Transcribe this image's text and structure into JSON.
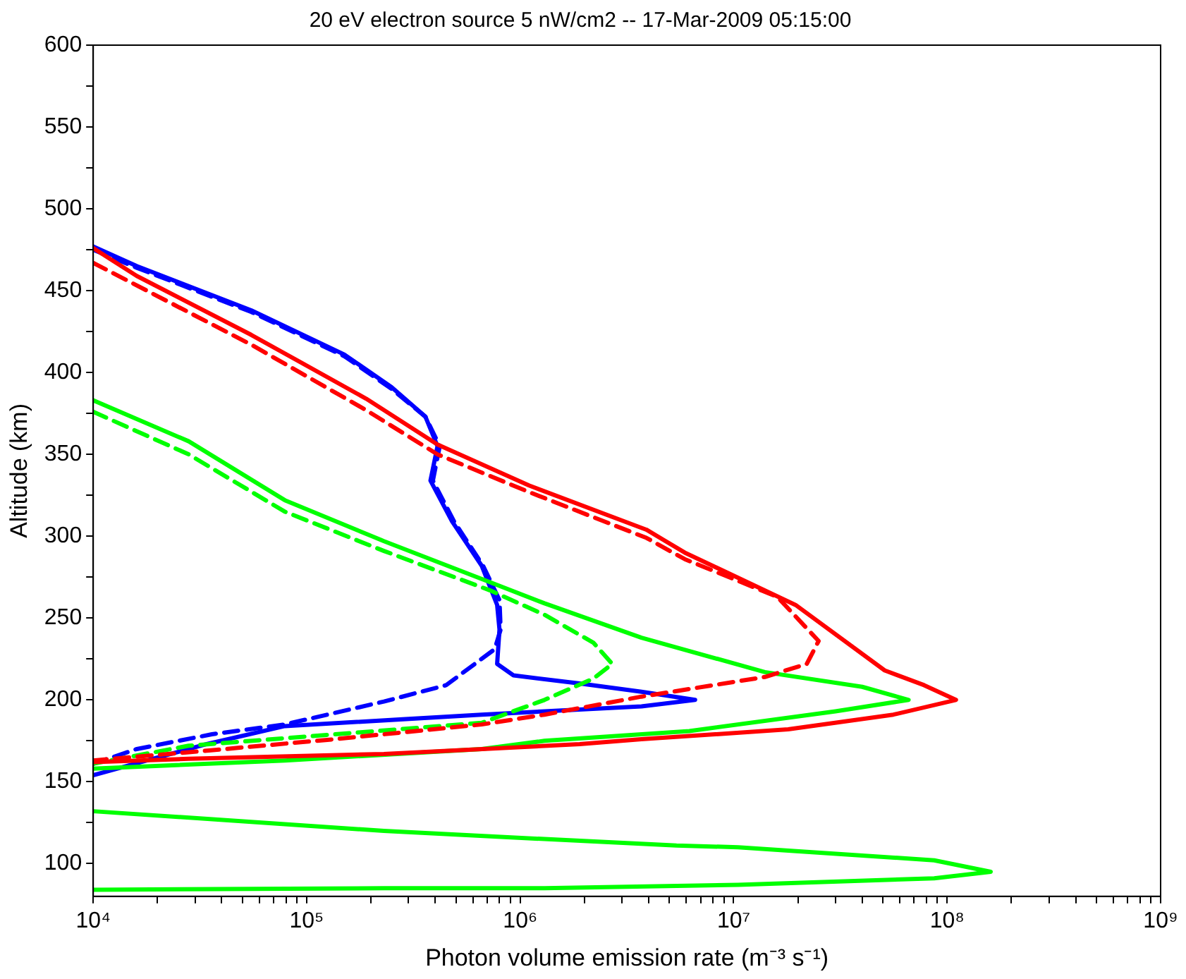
{
  "chart_data": {
    "type": "line",
    "title": "20 eV electron source 5 nW/cm2 -- 17-Mar-2009 05:15:00",
    "xlabel": "Photon volume emission rate (m⁻³ s⁻¹)",
    "ylabel": "Altitude (km)",
    "log": "x",
    "grid": false,
    "legend": false,
    "marker": "none",
    "xlim": [
      10000,
      1000000000
    ],
    "ylim": [
      80,
      600
    ],
    "xticks": [
      {
        "value": 10000,
        "label": "10⁴"
      },
      {
        "value": 20000,
        "label": null
      },
      {
        "value": 30000,
        "label": null
      },
      {
        "value": 40000,
        "label": null
      },
      {
        "value": 50000,
        "label": null
      },
      {
        "value": 60000,
        "label": null
      },
      {
        "value": 70000,
        "label": null
      },
      {
        "value": 80000,
        "label": null
      },
      {
        "value": 90000,
        "label": null
      },
      {
        "value": 100000,
        "label": "10⁵"
      },
      {
        "value": 200000,
        "label": null
      },
      {
        "value": 300000,
        "label": null
      },
      {
        "value": 400000,
        "label": null
      },
      {
        "value": 500000,
        "label": null
      },
      {
        "value": 600000,
        "label": null
      },
      {
        "value": 700000,
        "label": null
      },
      {
        "value": 800000,
        "label": null
      },
      {
        "value": 900000,
        "label": null
      },
      {
        "value": 1000000,
        "label": "10⁶"
      },
      {
        "value": 2000000,
        "label": null
      },
      {
        "value": 3000000,
        "label": null
      },
      {
        "value": 4000000,
        "label": null
      },
      {
        "value": 5000000,
        "label": null
      },
      {
        "value": 6000000,
        "label": null
      },
      {
        "value": 7000000,
        "label": null
      },
      {
        "value": 8000000,
        "label": null
      },
      {
        "value": 9000000,
        "label": null
      },
      {
        "value": 10000000,
        "label": "10⁷"
      },
      {
        "value": 20000000,
        "label": null
      },
      {
        "value": 30000000,
        "label": null
      },
      {
        "value": 40000000,
        "label": null
      },
      {
        "value": 50000000,
        "label": null
      },
      {
        "value": 60000000,
        "label": null
      },
      {
        "value": 70000000,
        "label": null
      },
      {
        "value": 80000000,
        "label": null
      },
      {
        "value": 90000000,
        "label": null
      },
      {
        "value": 100000000,
        "label": "10⁸"
      },
      {
        "value": 200000000,
        "label": null
      },
      {
        "value": 300000000,
        "label": null
      },
      {
        "value": 400000000,
        "label": null
      },
      {
        "value": 500000000,
        "label": null
      },
      {
        "value": 600000000,
        "label": null
      },
      {
        "value": 700000000,
        "label": null
      },
      {
        "value": 800000000,
        "label": null
      },
      {
        "value": 900000000,
        "label": null
      },
      {
        "value": 1000000000,
        "label": "10⁹"
      }
    ],
    "yticks": [
      100,
      {
        "value": 125,
        "label": null
      },
      150,
      {
        "value": 175,
        "label": null
      },
      200,
      {
        "value": 225,
        "label": null
      },
      250,
      {
        "value": 275,
        "label": null
      },
      300,
      {
        "value": 325,
        "label": null
      },
      350,
      {
        "value": 375,
        "label": null
      },
      400,
      {
        "value": 425,
        "label": null
      },
      450,
      {
        "value": 475,
        "label": null
      },
      500,
      {
        "value": 525,
        "label": null
      },
      550,
      {
        "value": 575,
        "label": null
      },
      600
    ],
    "series": [
      {
        "color": "#ff0000",
        "line_style": "solid",
        "x": [
          10000,
          16000,
          55000,
          190000,
          410000,
          1100000,
          3900000,
          5900000,
          19500000,
          51000000,
          78000000,
          110000000,
          56000000,
          18000000,
          3700000,
          1900000,
          230000,
          28000,
          10000
        ],
        "values": [
          476,
          459,
          423,
          384,
          356,
          331,
          304,
          290,
          258,
          218,
          209,
          200,
          191,
          182,
          176,
          173,
          167,
          164,
          162
        ]
      },
      {
        "color": "#ff0000",
        "line_style": "dashed",
        "x": [
          10000,
          55000,
          190000,
          410000,
          1100000,
          3900000,
          5900000,
          16000000,
          25000000,
          22000000,
          14000000,
          3700000,
          1300000,
          660000,
          135000,
          28000,
          10000
        ],
        "values": [
          467,
          417,
          377,
          350,
          327,
          299,
          286,
          263,
          236,
          222,
          214,
          202,
          191,
          185,
          176,
          168,
          163
        ]
      },
      {
        "color": "#00ff00",
        "line_style": "solid",
        "x": [
          10000,
          28000,
          79000,
          230000,
          720000,
          1300000,
          3700000,
          14000000,
          40000000,
          66000000,
          30000000,
          6200000,
          1300000,
          660000,
          79000,
          10000,
          null,
          10000,
          230000,
          1300000,
          5400000,
          10500000,
          87000000,
          160000000,
          87000000,
          10500000,
          1300000,
          230000,
          10000
        ],
        "values": [
          383,
          358,
          322,
          297,
          272,
          259,
          238,
          217,
          208,
          200,
          193,
          181,
          175,
          170,
          163,
          158,
          null,
          132,
          120,
          115,
          111,
          110,
          102,
          95,
          91,
          87,
          85,
          85,
          84
        ]
      },
      {
        "color": "#00ff00",
        "line_style": "dashed",
        "x": [
          10000,
          28000,
          79000,
          230000,
          720000,
          1300000,
          2200000,
          2700000,
          2200000,
          1300000,
          660000,
          135000,
          28000,
          10000
        ],
        "values": [
          376,
          350,
          315,
          291,
          267,
          252,
          235,
          222,
          213,
          200,
          186,
          179,
          172,
          161
        ]
      },
      {
        "color": "#0000ff",
        "line_style": "solid",
        "x": [
          10000,
          16000,
          55000,
          150000,
          250000,
          360000,
          410000,
          380000,
          480000,
          660000,
          780000,
          800000,
          780000,
          930000,
          1900000,
          3700000,
          6600000,
          3700000,
          1300000,
          660000,
          79000,
          34000,
          19000,
          10000
        ],
        "values": [
          477,
          465,
          438,
          411,
          391,
          373,
          355,
          334,
          309,
          282,
          258,
          243,
          222,
          215,
          210,
          205,
          200,
          196,
          193,
          191,
          184,
          173,
          164,
          154
        ]
      },
      {
        "color": "#0000ff",
        "line_style": "dashed",
        "x": [
          10000,
          16000,
          55000,
          150000,
          250000,
          360000,
          420000,
          390000,
          490000,
          670000,
          800000,
          810000,
          760000,
          450000,
          230000,
          79000,
          36000,
          16000,
          10000
        ],
        "values": [
          475,
          464,
          437,
          410,
          390,
          373,
          355,
          334,
          309,
          282,
          261,
          243,
          231,
          209,
          199,
          185,
          179,
          170,
          161
        ]
      }
    ]
  }
}
